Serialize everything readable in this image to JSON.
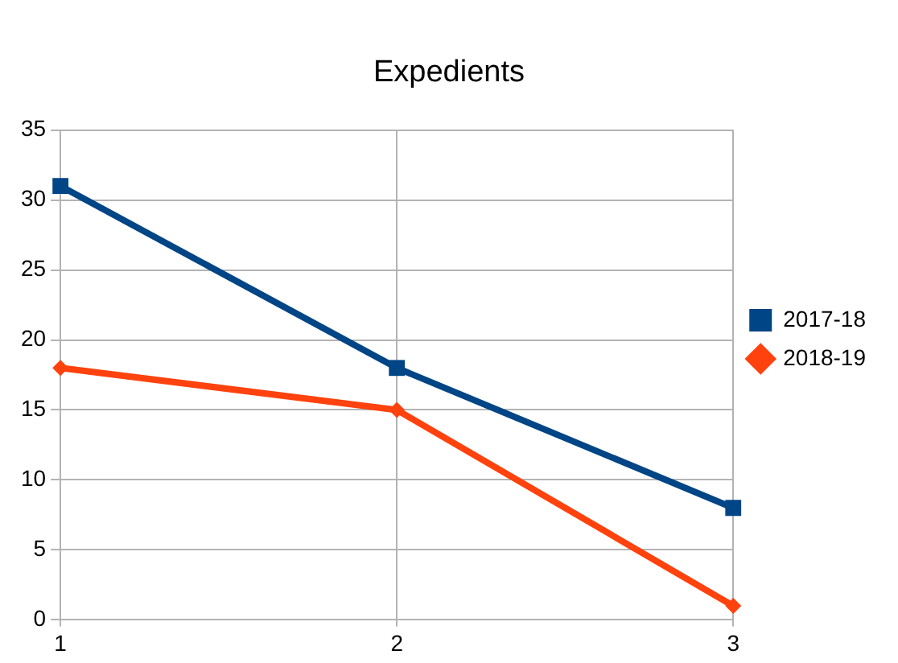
{
  "chart_data": {
    "type": "line",
    "title": "Expedients",
    "categories": [
      "1",
      "2",
      "3"
    ],
    "series": [
      {
        "name": "2017-18",
        "color": "#004586",
        "values": [
          31,
          18,
          8
        ],
        "marker": "square"
      },
      {
        "name": "2018-19",
        "color": "#ff420e",
        "values": [
          18,
          15,
          1
        ],
        "marker": "diamond"
      }
    ],
    "ylim": [
      0,
      35
    ],
    "yticks": [
      0,
      5,
      10,
      15,
      20,
      25,
      30,
      35
    ],
    "grid": true,
    "legend": "right",
    "line_style": "solid"
  }
}
